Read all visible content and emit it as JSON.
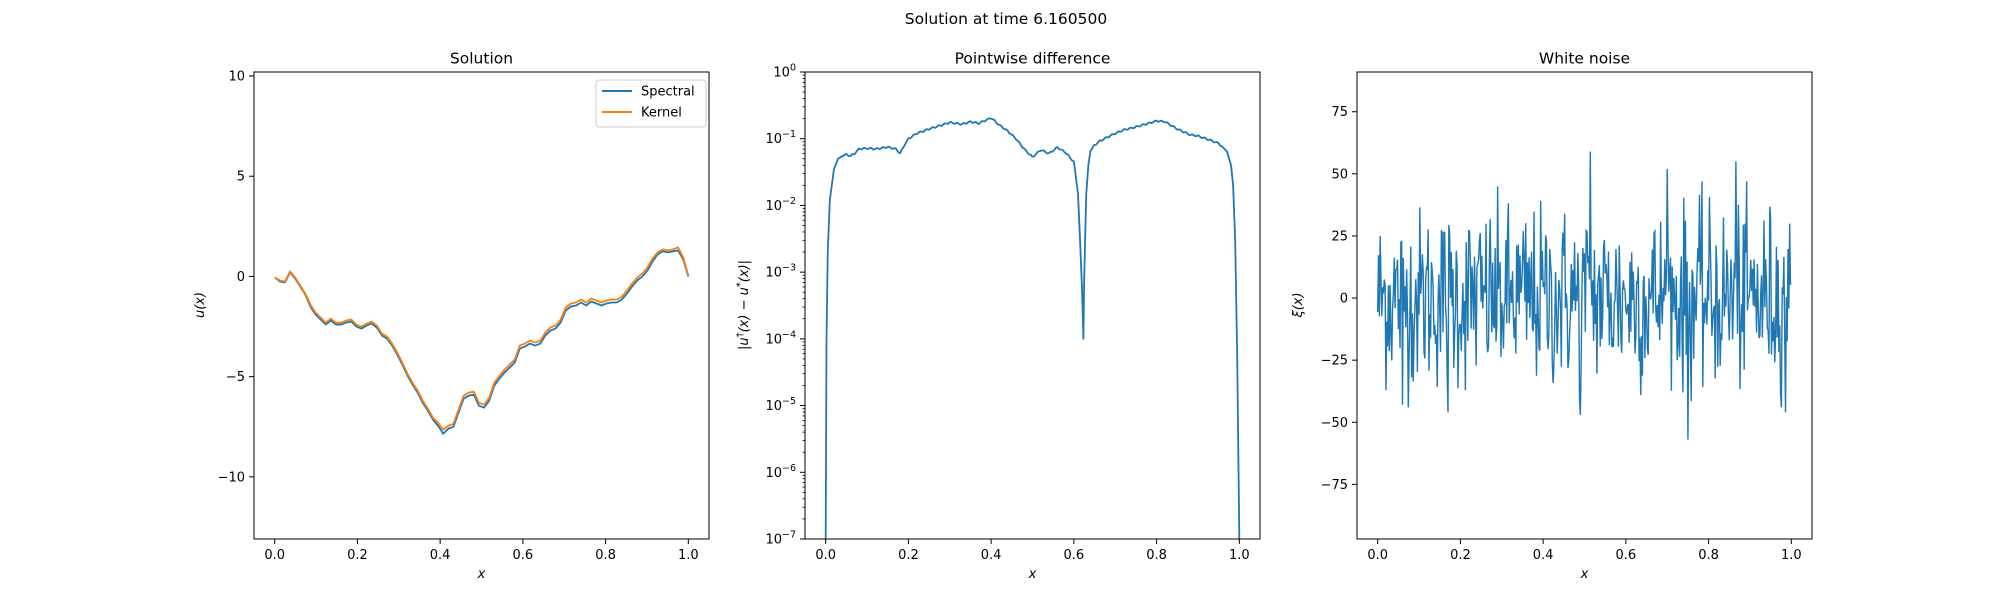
{
  "figure": {
    "suptitle": "Solution at time 6.160500"
  },
  "colors": {
    "spectral": "#1f77b4",
    "kernel": "#ff7f0e",
    "noise": "#1f77b4"
  },
  "chart_data": [
    {
      "id": "solution",
      "type": "line",
      "title": "Solution",
      "xlabel": "x",
      "ylabel": "u(x)",
      "xlim": [
        -0.05,
        1.05
      ],
      "ylim": [
        -13.1,
        10.2
      ],
      "xticks": [
        0.0,
        0.2,
        0.4,
        0.6,
        0.8,
        1.0
      ],
      "xtick_labels": [
        "0.0",
        "0.2",
        "0.4",
        "0.6",
        "0.8",
        "1.0"
      ],
      "yticks": [
        -10,
        -5,
        0,
        5,
        10
      ],
      "ytick_labels": [
        "−10",
        "−5",
        "0",
        "5",
        "10"
      ],
      "legend": {
        "position": "upper-right",
        "entries": [
          "Spectral",
          "Kernel"
        ]
      },
      "x": [
        0.0,
        0.01,
        0.02,
        0.03,
        0.04,
        0.05,
        0.06,
        0.07,
        0.08,
        0.09,
        0.1,
        0.11,
        0.12,
        0.13,
        0.14,
        0.15,
        0.16,
        0.17,
        0.18,
        0.19,
        0.2,
        0.21,
        0.22,
        0.23,
        0.24,
        0.25,
        0.26,
        0.27,
        0.28,
        0.29,
        0.3,
        0.31,
        0.32,
        0.33,
        0.34,
        0.35,
        0.36,
        0.37,
        0.38,
        0.39,
        0.4,
        0.41,
        0.42,
        0.43,
        0.44,
        0.45,
        0.46,
        0.47,
        0.48,
        0.49,
        0.5,
        0.51,
        0.52,
        0.53,
        0.54,
        0.55,
        0.56,
        0.57,
        0.58,
        0.59,
        0.6,
        0.61,
        0.62,
        0.63,
        0.64,
        0.65,
        0.66,
        0.67,
        0.68,
        0.69,
        0.7,
        0.71,
        0.72,
        0.73,
        0.74,
        0.75,
        0.76,
        0.77,
        0.78,
        0.79,
        0.8,
        0.81,
        0.82,
        0.83,
        0.84,
        0.85,
        0.86,
        0.87,
        0.88,
        0.89,
        0.9,
        0.91,
        0.92,
        0.93,
        0.94,
        0.95,
        0.96,
        0.97,
        0.98,
        0.99,
        1.0
      ],
      "series": [
        {
          "name": "Spectral",
          "color": "#1f77b4",
          "values": [
            -0.05,
            -0.25,
            -0.3,
            0.2,
            -0.1,
            -0.5,
            -0.9,
            -1.5,
            -1.9,
            -2.15,
            -2.4,
            -2.2,
            -2.4,
            -2.4,
            -2.3,
            -2.25,
            -2.5,
            -2.6,
            -2.45,
            -2.35,
            -2.55,
            -2.95,
            -3.1,
            -3.45,
            -3.9,
            -4.4,
            -4.95,
            -5.4,
            -5.8,
            -6.3,
            -6.7,
            -7.15,
            -7.45,
            -7.85,
            -7.6,
            -7.5,
            -6.8,
            -6.1,
            -5.95,
            -5.9,
            -6.45,
            -6.55,
            -6.2,
            -5.45,
            -5.1,
            -4.8,
            -4.55,
            -4.3,
            -3.6,
            -3.5,
            -3.35,
            -3.45,
            -3.35,
            -2.95,
            -2.7,
            -2.6,
            -2.3,
            -1.7,
            -1.5,
            -1.45,
            -1.3,
            -1.45,
            -1.25,
            -1.35,
            -1.45,
            -1.35,
            -1.3,
            -1.3,
            -1.15,
            -0.85,
            -0.5,
            -0.2,
            0.0,
            0.3,
            0.75,
            1.1,
            1.25,
            1.2,
            1.25,
            1.3,
            0.85,
            0.0,
            null,
            null,
            null,
            null,
            null,
            null,
            null,
            null,
            null,
            null,
            null,
            null,
            null,
            null,
            null,
            null,
            null,
            null,
            null
          ]
        },
        {
          "name": "Kernel",
          "color": "#ff7f0e",
          "values": [
            -0.05,
            -0.2,
            -0.25,
            0.25,
            -0.05,
            -0.45,
            -0.85,
            -1.4,
            -1.8,
            -2.05,
            -2.3,
            -2.1,
            -2.3,
            -2.3,
            -2.2,
            -2.15,
            -2.4,
            -2.5,
            -2.35,
            -2.25,
            -2.45,
            -2.85,
            -3.0,
            -3.35,
            -3.8,
            -4.3,
            -4.85,
            -5.3,
            -5.7,
            -6.2,
            -6.6,
            -7.05,
            -7.3,
            -7.65,
            -7.45,
            -7.35,
            -6.65,
            -5.95,
            -5.8,
            -5.75,
            -6.3,
            -6.4,
            -6.05,
            -5.3,
            -4.95,
            -4.65,
            -4.4,
            -4.15,
            -3.45,
            -3.35,
            -3.2,
            -3.3,
            -3.2,
            -2.8,
            -2.55,
            -2.45,
            -2.15,
            -1.55,
            -1.35,
            -1.3,
            -1.15,
            -1.3,
            -1.1,
            -1.2,
            -1.3,
            -1.2,
            -1.15,
            -1.15,
            -1.0,
            -0.7,
            -0.35,
            -0.05,
            0.15,
            0.45,
            0.9,
            1.2,
            1.35,
            1.3,
            1.35,
            1.45,
            0.95,
            0.05,
            null,
            null,
            null,
            null,
            null,
            null,
            null,
            null,
            null,
            null,
            null,
            null,
            null,
            null,
            null,
            null,
            null,
            null,
            null
          ]
        }
      ]
    },
    {
      "id": "difference",
      "type": "line",
      "title": "Pointwise difference",
      "xlabel": "x",
      "ylabel": "|u†(x) − u*(x)|",
      "yscale": "log",
      "xlim": [
        -0.05,
        1.05
      ],
      "ylim": [
        1e-07,
        1
      ],
      "xticks": [
        0.0,
        0.2,
        0.4,
        0.6,
        0.8,
        1.0
      ],
      "xtick_labels": [
        "0.0",
        "0.2",
        "0.4",
        "0.6",
        "0.8",
        "1.0"
      ],
      "yticks": [
        1e-07,
        1e-06,
        1e-05,
        0.0001,
        0.001,
        0.01,
        0.1,
        1
      ],
      "ytick_labels": [
        {
          "base": "10",
          "exp": "−7"
        },
        {
          "base": "10",
          "exp": "−6"
        },
        {
          "base": "10",
          "exp": "−5"
        },
        {
          "base": "10",
          "exp": "−4"
        },
        {
          "base": "10",
          "exp": "−3"
        },
        {
          "base": "10",
          "exp": "−2"
        },
        {
          "base": "10",
          "exp": "−1"
        },
        {
          "base": "10",
          "exp": "0"
        }
      ],
      "series": [
        {
          "color": "#1f77b4",
          "x": [
            0.0,
            0.002,
            0.005,
            0.01,
            0.02,
            0.03,
            0.04,
            0.05,
            0.06,
            0.07,
            0.08,
            0.1,
            0.12,
            0.15,
            0.17,
            0.18,
            0.19,
            0.2,
            0.22,
            0.25,
            0.28,
            0.3,
            0.33,
            0.35,
            0.37,
            0.4,
            0.42,
            0.44,
            0.46,
            0.48,
            0.5,
            0.52,
            0.54,
            0.56,
            0.58,
            0.6,
            0.61,
            0.615,
            0.62,
            0.623,
            0.625,
            0.628,
            0.63,
            0.635,
            0.64,
            0.65,
            0.66,
            0.68,
            0.7,
            0.72,
            0.75,
            0.78,
            0.8,
            0.82,
            0.85,
            0.88,
            0.9,
            0.93,
            0.95,
            0.97,
            0.98,
            0.985,
            0.99,
            0.995,
            1.0
          ],
          "y": [
            1e-07,
            0.0001,
            0.002,
            0.012,
            0.035,
            0.05,
            0.055,
            0.058,
            0.055,
            0.06,
            0.07,
            0.072,
            0.07,
            0.075,
            0.07,
            0.06,
            0.08,
            0.1,
            0.12,
            0.14,
            0.16,
            0.175,
            0.165,
            0.18,
            0.17,
            0.205,
            0.16,
            0.13,
            0.1,
            0.07,
            0.053,
            0.068,
            0.06,
            0.074,
            0.062,
            0.045,
            0.015,
            0.003,
            0.0005,
            0.0001,
            0.0008,
            0.005,
            0.015,
            0.04,
            0.065,
            0.08,
            0.09,
            0.105,
            0.12,
            0.135,
            0.15,
            0.17,
            0.185,
            0.18,
            0.14,
            0.115,
            0.11,
            0.095,
            0.085,
            0.065,
            0.04,
            0.02,
            0.003,
            5e-05,
            1e-07
          ]
        }
      ]
    },
    {
      "id": "noise",
      "type": "line",
      "title": "White noise",
      "xlabel": "x",
      "ylabel": "ξ(x)",
      "xlim": [
        -0.05,
        1.05
      ],
      "ylim": [
        -97,
        91
      ],
      "xticks": [
        0.0,
        0.2,
        0.4,
        0.6,
        0.8,
        1.0
      ],
      "xtick_labels": [
        "0.0",
        "0.2",
        "0.4",
        "0.6",
        "0.8",
        "1.0"
      ],
      "yticks": [
        -75,
        -50,
        -25,
        0,
        25,
        50,
        75
      ],
      "ytick_labels": [
        "−75",
        "−50",
        "−25",
        "0",
        "25",
        "50",
        "75"
      ],
      "n_samples": 500,
      "sample_std": 18,
      "extremes": [
        {
          "x": 0.513,
          "y": 59
        },
        {
          "x": 0.75,
          "y": -57
        },
        {
          "x": 0.865,
          "y": 55
        },
        {
          "x": 0.7,
          "y": 52
        },
        {
          "x": 0.49,
          "y": -47
        },
        {
          "x": 0.17,
          "y": -46
        },
        {
          "x": 0.06,
          "y": -43
        },
        {
          "x": 0.985,
          "y": -46
        }
      ]
    }
  ]
}
